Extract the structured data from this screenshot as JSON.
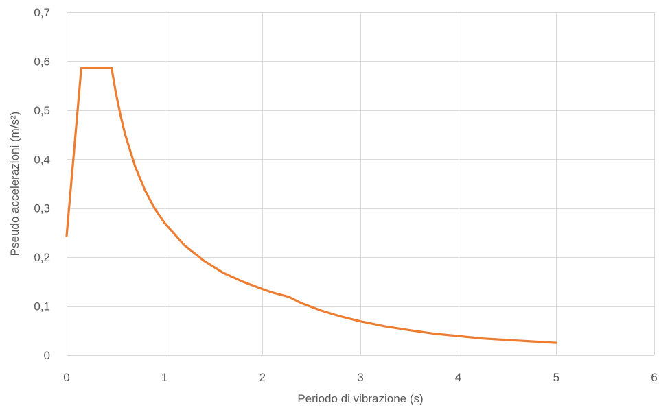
{
  "chart_data": {
    "type": "line",
    "title": "",
    "xlabel": "Periodo di vibrazione (s)",
    "ylabel": "Pseudo accelerazioni (m/s²)",
    "xlim": [
      0,
      6
    ],
    "ylim": [
      0,
      0.7
    ],
    "x_ticks": [
      0,
      1,
      2,
      3,
      4,
      5,
      6
    ],
    "x_tick_labels": [
      "0",
      "1",
      "2",
      "3",
      "4",
      "5",
      "6"
    ],
    "y_ticks": [
      0,
      0.1,
      0.2,
      0.3,
      0.4,
      0.5,
      0.6,
      0.7
    ],
    "y_tick_labels": [
      "0",
      "0,1",
      "0,2",
      "0,3",
      "0,4",
      "0,5",
      "0,6",
      "0,7"
    ],
    "grid": true,
    "legend": "none",
    "line_color": "#ED7D31",
    "grid_color": "#D9D9D9",
    "series": [
      {
        "x": [
          0,
          0.15,
          0.46,
          0.5,
          0.55,
          0.6,
          0.7,
          0.8,
          0.9,
          1.0,
          1.2,
          1.4,
          1.6,
          1.8,
          2.0,
          2.1,
          2.27,
          2.4,
          2.6,
          2.8,
          3.0,
          3.25,
          3.5,
          3.75,
          4.0,
          4.25,
          4.5,
          4.75,
          5.0
        ],
        "y": [
          0.243,
          0.586,
          0.586,
          0.539,
          0.49,
          0.449,
          0.385,
          0.337,
          0.299,
          0.27,
          0.225,
          0.193,
          0.168,
          0.15,
          0.135,
          0.128,
          0.119,
          0.106,
          0.091,
          0.079,
          0.069,
          0.059,
          0.051,
          0.044,
          0.039,
          0.034,
          0.031,
          0.028,
          0.025
        ]
      }
    ]
  }
}
